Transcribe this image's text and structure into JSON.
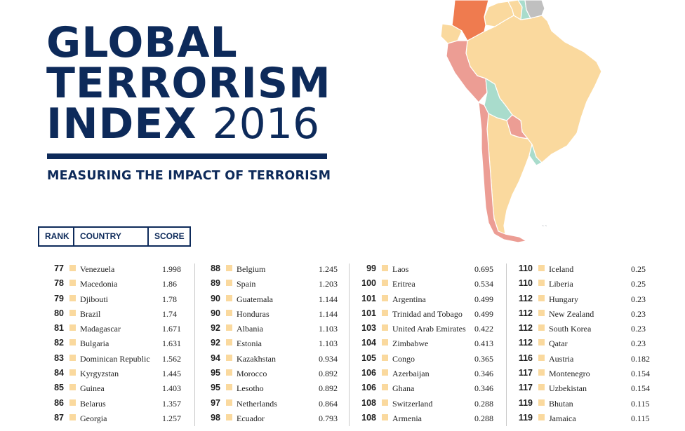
{
  "title": {
    "line1": "GLOBAL",
    "line2": "TERRORISM",
    "line3_word": "INDEX",
    "line3_year": "2016",
    "subtitle": "MEASURING THE IMPACT OF TERRORISM"
  },
  "colors": {
    "navy": "#0d2a5a",
    "swatch_very_low": "#fad99e",
    "map_very_low": "#fad99e",
    "map_low": "#a9dccc",
    "map_medium": "#ec9d94",
    "map_high": "#ef7b4f",
    "map_no_data": "#c0c0c0"
  },
  "table_header": {
    "rank": "RANK",
    "country": "COUNTRY",
    "score": "SCORE"
  },
  "columns": [
    [
      {
        "rank": "77",
        "country": "Venezuela",
        "score": "1.998"
      },
      {
        "rank": "78",
        "country": "Macedonia",
        "score": "1.86"
      },
      {
        "rank": "79",
        "country": "Djibouti",
        "score": "1.78"
      },
      {
        "rank": "80",
        "country": "Brazil",
        "score": "1.74"
      },
      {
        "rank": "81",
        "country": "Madagascar",
        "score": "1.671"
      },
      {
        "rank": "82",
        "country": "Bulgaria",
        "score": "1.631"
      },
      {
        "rank": "83",
        "country": "Dominican Republic",
        "score": "1.562"
      },
      {
        "rank": "84",
        "country": "Kyrgyzstan",
        "score": "1.445"
      },
      {
        "rank": "85",
        "country": "Guinea",
        "score": "1.403"
      },
      {
        "rank": "86",
        "country": "Belarus",
        "score": "1.357"
      },
      {
        "rank": "87",
        "country": "Georgia",
        "score": "1.257"
      }
    ],
    [
      {
        "rank": "88",
        "country": "Belgium",
        "score": "1.245"
      },
      {
        "rank": "89",
        "country": "Spain",
        "score": "1.203"
      },
      {
        "rank": "90",
        "country": "Guatemala",
        "score": "1.144"
      },
      {
        "rank": "90",
        "country": "Honduras",
        "score": "1.144"
      },
      {
        "rank": "92",
        "country": "Albania",
        "score": "1.103"
      },
      {
        "rank": "92",
        "country": "Estonia",
        "score": "1.103"
      },
      {
        "rank": "94",
        "country": "Kazakhstan",
        "score": "0.934"
      },
      {
        "rank": "95",
        "country": "Morocco",
        "score": "0.892"
      },
      {
        "rank": "95",
        "country": "Lesotho",
        "score": "0.892"
      },
      {
        "rank": "97",
        "country": "Netherlands",
        "score": "0.864"
      },
      {
        "rank": "98",
        "country": "Ecuador",
        "score": "0.793"
      }
    ],
    [
      {
        "rank": "99",
        "country": "Laos",
        "score": "0.695"
      },
      {
        "rank": "100",
        "country": "Eritrea",
        "score": "0.534"
      },
      {
        "rank": "101",
        "country": "Argentina",
        "score": "0.499"
      },
      {
        "rank": "101",
        "country": "Trinidad and Tobago",
        "score": "0.499"
      },
      {
        "rank": "103",
        "country": "United Arab Emirates",
        "score": "0.422"
      },
      {
        "rank": "104",
        "country": "Zimbabwe",
        "score": "0.413"
      },
      {
        "rank": "105",
        "country": "Congo",
        "score": "0.365"
      },
      {
        "rank": "106",
        "country": "Azerbaijan",
        "score": "0.346"
      },
      {
        "rank": "106",
        "country": "Ghana",
        "score": "0.346"
      },
      {
        "rank": "108",
        "country": "Switzerland",
        "score": "0.288"
      },
      {
        "rank": "108",
        "country": "Armenia",
        "score": "0.288"
      }
    ],
    [
      {
        "rank": "110",
        "country": "Iceland",
        "score": "0.25"
      },
      {
        "rank": "110",
        "country": "Liberia",
        "score": "0.25"
      },
      {
        "rank": "112",
        "country": "Hungary",
        "score": "0.23"
      },
      {
        "rank": "112",
        "country": "New Zealand",
        "score": "0.23"
      },
      {
        "rank": "112",
        "country": "South Korea",
        "score": "0.23"
      },
      {
        "rank": "112",
        "country": "Qatar",
        "score": "0.23"
      },
      {
        "rank": "116",
        "country": "Austria",
        "score": "0.182"
      },
      {
        "rank": "117",
        "country": "Montenegro",
        "score": "0.154"
      },
      {
        "rank": "117",
        "country": "Uzbekistan",
        "score": "0.154"
      },
      {
        "rank": "119",
        "country": "Bhutan",
        "score": "0.115"
      },
      {
        "rank": "119",
        "country": "Jamaica",
        "score": "0.115"
      }
    ]
  ]
}
